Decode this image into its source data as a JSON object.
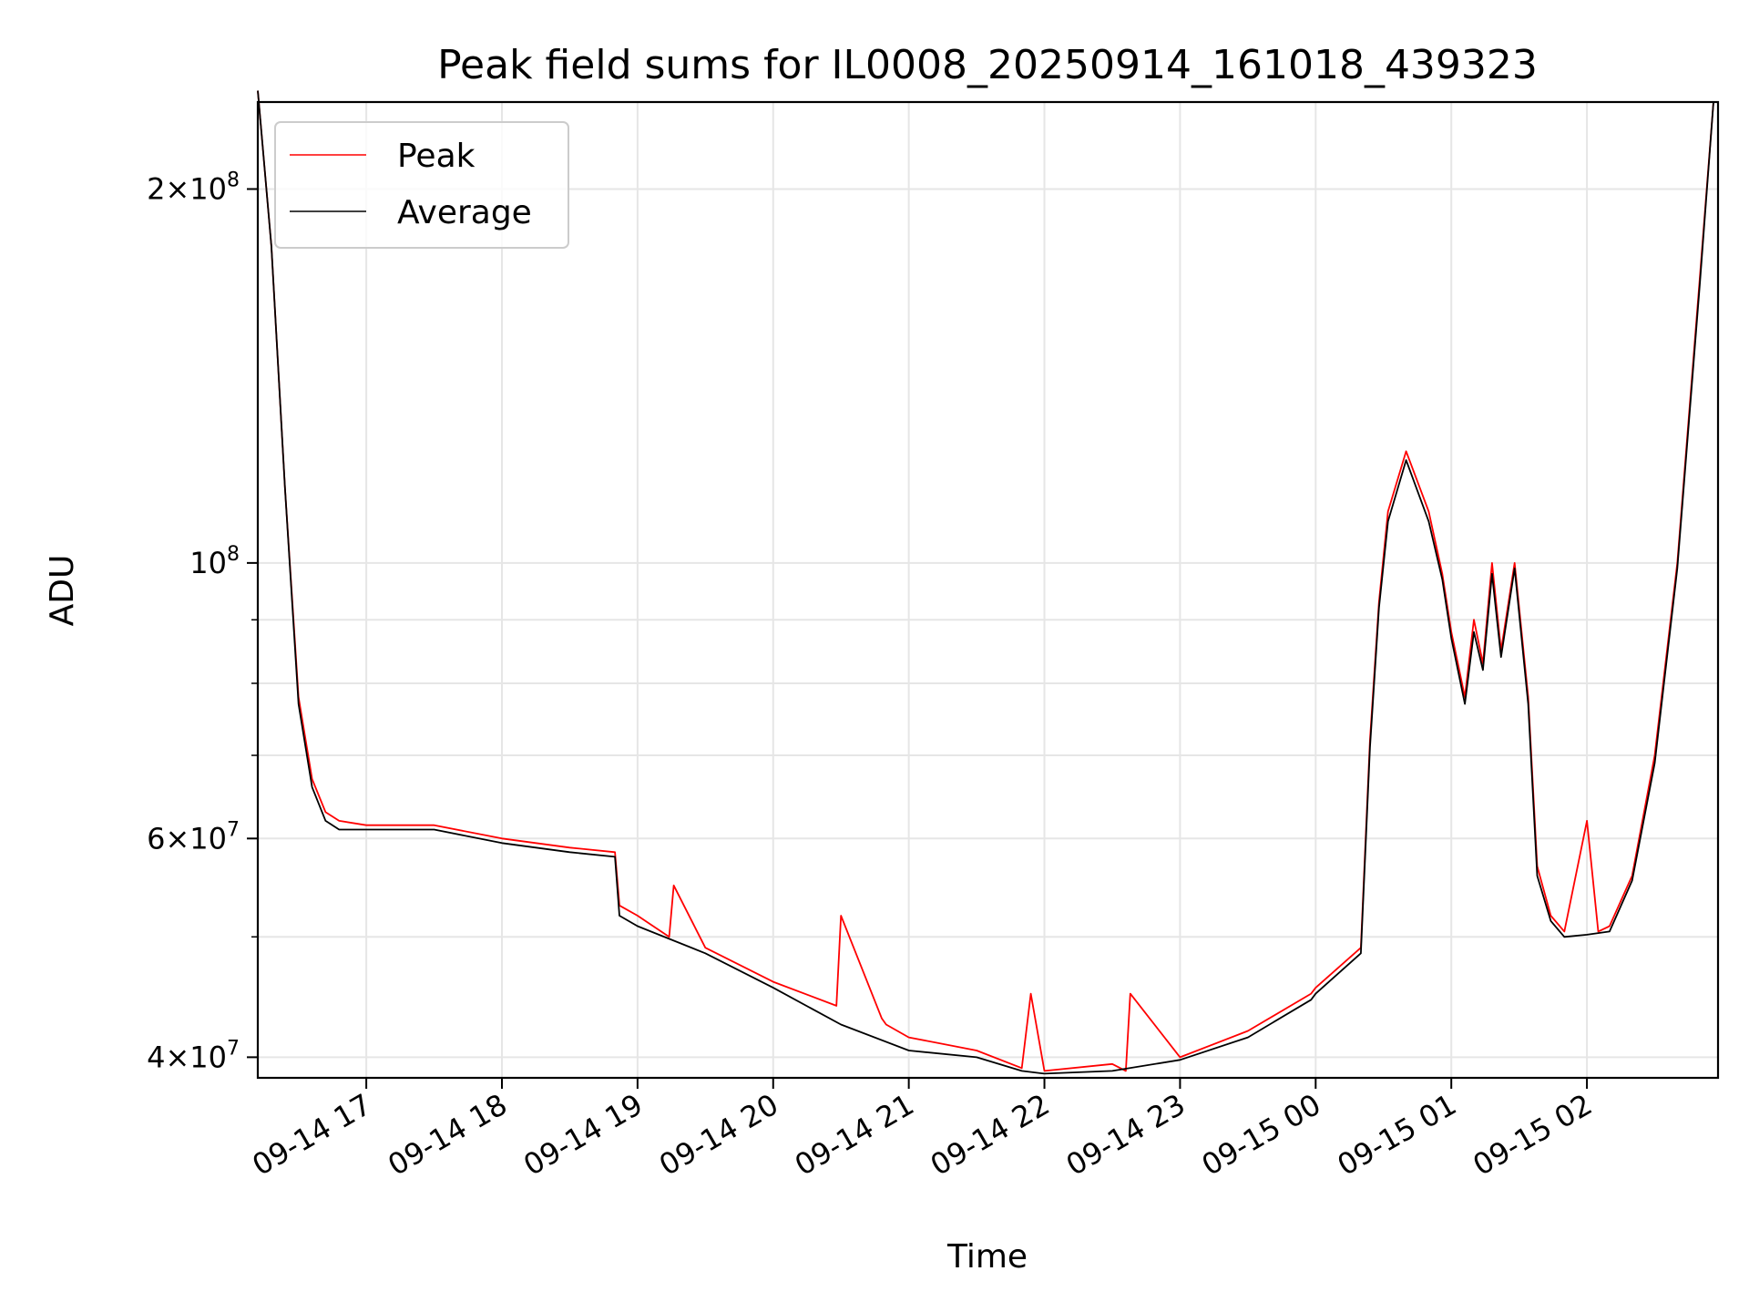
{
  "chart_data": {
    "type": "line",
    "title": "Peak field sums for IL0008_20250914_161018_439323",
    "xlabel": "Time",
    "ylabel": "ADU",
    "y_scale": "log",
    "ylim": [
      38500000,
      235000000
    ],
    "xlim": [
      "2025-09-14 16:12",
      "2025-09-15 02:58"
    ],
    "grid": true,
    "legend_position": "top-left",
    "x_ticks": [
      {
        "value": "2025-09-14 17:00",
        "label": "09-14 17"
      },
      {
        "value": "2025-09-14 18:00",
        "label": "09-14 18"
      },
      {
        "value": "2025-09-14 19:00",
        "label": "09-14 19"
      },
      {
        "value": "2025-09-14 20:00",
        "label": "09-14 20"
      },
      {
        "value": "2025-09-14 21:00",
        "label": "09-14 21"
      },
      {
        "value": "2025-09-14 22:00",
        "label": "09-14 22"
      },
      {
        "value": "2025-09-14 23:00",
        "label": "09-14 23"
      },
      {
        "value": "2025-09-15 00:00",
        "label": "09-15 00"
      },
      {
        "value": "2025-09-15 01:00",
        "label": "09-15 01"
      },
      {
        "value": "2025-09-15 02:00",
        "label": "09-15 02"
      }
    ],
    "y_ticks": [
      {
        "value": 40000000,
        "base": "4",
        "exp": "7"
      },
      {
        "value": 60000000,
        "base": "6",
        "exp": "7"
      },
      {
        "value": 100000000,
        "base": "",
        "exp": "8"
      },
      {
        "value": 200000000,
        "base": "2",
        "exp": "8"
      }
    ],
    "y_minor_ticks": [
      50000000,
      70000000,
      80000000,
      90000000
    ],
    "series": [
      {
        "name": "Peak",
        "color": "#ff0000",
        "x": [
          "2025-09-14 16:12",
          "2025-09-14 16:18",
          "2025-09-14 16:24",
          "2025-09-14 16:30",
          "2025-09-14 16:36",
          "2025-09-14 16:42",
          "2025-09-14 16:48",
          "2025-09-14 17:00",
          "2025-09-14 17:30",
          "2025-09-14 18:00",
          "2025-09-14 18:30",
          "2025-09-14 18:50",
          "2025-09-14 18:52",
          "2025-09-14 19:00",
          "2025-09-14 19:14",
          "2025-09-14 19:16",
          "2025-09-14 19:30",
          "2025-09-14 20:00",
          "2025-09-14 20:28",
          "2025-09-14 20:30",
          "2025-09-14 20:48",
          "2025-09-14 20:50",
          "2025-09-14 21:00",
          "2025-09-14 21:30",
          "2025-09-14 21:50",
          "2025-09-14 21:54",
          "2025-09-14 22:00",
          "2025-09-14 22:30",
          "2025-09-14 22:36",
          "2025-09-14 22:38",
          "2025-09-14 23:00",
          "2025-09-14 23:30",
          "2025-09-14 23:58",
          "2025-09-15 00:00",
          "2025-09-15 00:20",
          "2025-09-15 00:24",
          "2025-09-15 00:28",
          "2025-09-15 00:32",
          "2025-09-15 00:40",
          "2025-09-15 00:50",
          "2025-09-15 00:56",
          "2025-09-15 01:00",
          "2025-09-15 01:06",
          "2025-09-15 01:10",
          "2025-09-15 01:14",
          "2025-09-15 01:18",
          "2025-09-15 01:22",
          "2025-09-15 01:28",
          "2025-09-15 01:34",
          "2025-09-15 01:38",
          "2025-09-15 01:44",
          "2025-09-15 01:50",
          "2025-09-15 02:00",
          "2025-09-15 02:05",
          "2025-09-15 02:10",
          "2025-09-15 02:20",
          "2025-09-15 02:30",
          "2025-09-15 02:40",
          "2025-09-15 02:50",
          "2025-09-15 02:56"
        ],
        "values": [
          240000000,
          180000000,
          115000000,
          78000000,
          67000000,
          63000000,
          62000000,
          61500000,
          61500000,
          60000000,
          59000000,
          58500000,
          53000000,
          52000000,
          50000000,
          55000000,
          49000000,
          46000000,
          44000000,
          52000000,
          43000000,
          42500000,
          41500000,
          40500000,
          39200000,
          45000000,
          39000000,
          39500000,
          39000000,
          45000000,
          40000000,
          42000000,
          45000000,
          45500000,
          49000000,
          72000000,
          93000000,
          110000000,
          123000000,
          110000000,
          98000000,
          88000000,
          78000000,
          90000000,
          83000000,
          100000000,
          85000000,
          100000000,
          78000000,
          57000000,
          52000000,
          50500000,
          62000000,
          50500000,
          51000000,
          56000000,
          70000000,
          100000000,
          170000000,
          235000000
        ]
      },
      {
        "name": "Average",
        "color": "#000000",
        "x": [
          "2025-09-14 16:12",
          "2025-09-14 16:18",
          "2025-09-14 16:24",
          "2025-09-14 16:30",
          "2025-09-14 16:36",
          "2025-09-14 16:42",
          "2025-09-14 16:48",
          "2025-09-14 17:00",
          "2025-09-14 17:30",
          "2025-09-14 18:00",
          "2025-09-14 18:30",
          "2025-09-14 18:50",
          "2025-09-14 18:52",
          "2025-09-14 19:00",
          "2025-09-14 19:30",
          "2025-09-14 20:00",
          "2025-09-14 20:30",
          "2025-09-14 21:00",
          "2025-09-14 21:30",
          "2025-09-14 21:50",
          "2025-09-14 22:00",
          "2025-09-14 22:30",
          "2025-09-14 23:00",
          "2025-09-14 23:30",
          "2025-09-14 23:58",
          "2025-09-15 00:00",
          "2025-09-15 00:20",
          "2025-09-15 00:24",
          "2025-09-15 00:28",
          "2025-09-15 00:32",
          "2025-09-15 00:40",
          "2025-09-15 00:50",
          "2025-09-15 00:56",
          "2025-09-15 01:00",
          "2025-09-15 01:06",
          "2025-09-15 01:10",
          "2025-09-15 01:14",
          "2025-09-15 01:18",
          "2025-09-15 01:22",
          "2025-09-15 01:28",
          "2025-09-15 01:34",
          "2025-09-15 01:38",
          "2025-09-15 01:44",
          "2025-09-15 01:50",
          "2025-09-15 02:00",
          "2025-09-15 02:10",
          "2025-09-15 02:20",
          "2025-09-15 02:30",
          "2025-09-15 02:40",
          "2025-09-15 02:50",
          "2025-09-15 02:56"
        ],
        "values": [
          240000000,
          180000000,
          115000000,
          77000000,
          66000000,
          62000000,
          61000000,
          61000000,
          61000000,
          59500000,
          58500000,
          58000000,
          52000000,
          51000000,
          48500000,
          45500000,
          42500000,
          40500000,
          40000000,
          39000000,
          38800000,
          39000000,
          39800000,
          41500000,
          44500000,
          45000000,
          48500000,
          71000000,
          92000000,
          108000000,
          121000000,
          108000000,
          97000000,
          87000000,
          77000000,
          88000000,
          82000000,
          98000000,
          84000000,
          99000000,
          77000000,
          56000000,
          51500000,
          50000000,
          50200000,
          50500000,
          55500000,
          69000000,
          99000000,
          168000000,
          235000000
        ]
      }
    ]
  }
}
